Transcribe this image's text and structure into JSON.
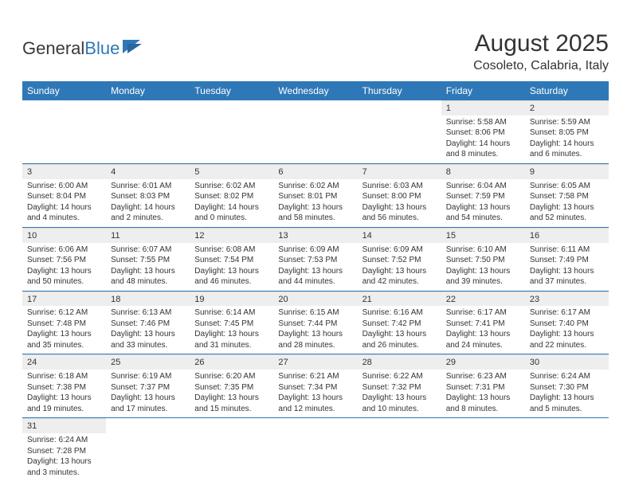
{
  "logo": {
    "text1": "General",
    "text2": "Blue"
  },
  "title": "August 2025",
  "location": "Cosoleto, Calabria, Italy",
  "colors": {
    "header_bg": "#2f78b7",
    "header_text": "#ffffff",
    "daynum_bg": "#eeeeee",
    "row_divider": "#2f78b7",
    "body_text": "#333333"
  },
  "day_headers": [
    "Sunday",
    "Monday",
    "Tuesday",
    "Wednesday",
    "Thursday",
    "Friday",
    "Saturday"
  ],
  "weeks": [
    [
      {
        "empty": true
      },
      {
        "empty": true
      },
      {
        "empty": true
      },
      {
        "empty": true
      },
      {
        "empty": true
      },
      {
        "num": "1",
        "sunrise": "Sunrise: 5:58 AM",
        "sunset": "Sunset: 8:06 PM",
        "day1": "Daylight: 14 hours",
        "day2": "and 8 minutes."
      },
      {
        "num": "2",
        "sunrise": "Sunrise: 5:59 AM",
        "sunset": "Sunset: 8:05 PM",
        "day1": "Daylight: 14 hours",
        "day2": "and 6 minutes."
      }
    ],
    [
      {
        "num": "3",
        "sunrise": "Sunrise: 6:00 AM",
        "sunset": "Sunset: 8:04 PM",
        "day1": "Daylight: 14 hours",
        "day2": "and 4 minutes."
      },
      {
        "num": "4",
        "sunrise": "Sunrise: 6:01 AM",
        "sunset": "Sunset: 8:03 PM",
        "day1": "Daylight: 14 hours",
        "day2": "and 2 minutes."
      },
      {
        "num": "5",
        "sunrise": "Sunrise: 6:02 AM",
        "sunset": "Sunset: 8:02 PM",
        "day1": "Daylight: 14 hours",
        "day2": "and 0 minutes."
      },
      {
        "num": "6",
        "sunrise": "Sunrise: 6:02 AM",
        "sunset": "Sunset: 8:01 PM",
        "day1": "Daylight: 13 hours",
        "day2": "and 58 minutes."
      },
      {
        "num": "7",
        "sunrise": "Sunrise: 6:03 AM",
        "sunset": "Sunset: 8:00 PM",
        "day1": "Daylight: 13 hours",
        "day2": "and 56 minutes."
      },
      {
        "num": "8",
        "sunrise": "Sunrise: 6:04 AM",
        "sunset": "Sunset: 7:59 PM",
        "day1": "Daylight: 13 hours",
        "day2": "and 54 minutes."
      },
      {
        "num": "9",
        "sunrise": "Sunrise: 6:05 AM",
        "sunset": "Sunset: 7:58 PM",
        "day1": "Daylight: 13 hours",
        "day2": "and 52 minutes."
      }
    ],
    [
      {
        "num": "10",
        "sunrise": "Sunrise: 6:06 AM",
        "sunset": "Sunset: 7:56 PM",
        "day1": "Daylight: 13 hours",
        "day2": "and 50 minutes."
      },
      {
        "num": "11",
        "sunrise": "Sunrise: 6:07 AM",
        "sunset": "Sunset: 7:55 PM",
        "day1": "Daylight: 13 hours",
        "day2": "and 48 minutes."
      },
      {
        "num": "12",
        "sunrise": "Sunrise: 6:08 AM",
        "sunset": "Sunset: 7:54 PM",
        "day1": "Daylight: 13 hours",
        "day2": "and 46 minutes."
      },
      {
        "num": "13",
        "sunrise": "Sunrise: 6:09 AM",
        "sunset": "Sunset: 7:53 PM",
        "day1": "Daylight: 13 hours",
        "day2": "and 44 minutes."
      },
      {
        "num": "14",
        "sunrise": "Sunrise: 6:09 AM",
        "sunset": "Sunset: 7:52 PM",
        "day1": "Daylight: 13 hours",
        "day2": "and 42 minutes."
      },
      {
        "num": "15",
        "sunrise": "Sunrise: 6:10 AM",
        "sunset": "Sunset: 7:50 PM",
        "day1": "Daylight: 13 hours",
        "day2": "and 39 minutes."
      },
      {
        "num": "16",
        "sunrise": "Sunrise: 6:11 AM",
        "sunset": "Sunset: 7:49 PM",
        "day1": "Daylight: 13 hours",
        "day2": "and 37 minutes."
      }
    ],
    [
      {
        "num": "17",
        "sunrise": "Sunrise: 6:12 AM",
        "sunset": "Sunset: 7:48 PM",
        "day1": "Daylight: 13 hours",
        "day2": "and 35 minutes."
      },
      {
        "num": "18",
        "sunrise": "Sunrise: 6:13 AM",
        "sunset": "Sunset: 7:46 PM",
        "day1": "Daylight: 13 hours",
        "day2": "and 33 minutes."
      },
      {
        "num": "19",
        "sunrise": "Sunrise: 6:14 AM",
        "sunset": "Sunset: 7:45 PM",
        "day1": "Daylight: 13 hours",
        "day2": "and 31 minutes."
      },
      {
        "num": "20",
        "sunrise": "Sunrise: 6:15 AM",
        "sunset": "Sunset: 7:44 PM",
        "day1": "Daylight: 13 hours",
        "day2": "and 28 minutes."
      },
      {
        "num": "21",
        "sunrise": "Sunrise: 6:16 AM",
        "sunset": "Sunset: 7:42 PM",
        "day1": "Daylight: 13 hours",
        "day2": "and 26 minutes."
      },
      {
        "num": "22",
        "sunrise": "Sunrise: 6:17 AM",
        "sunset": "Sunset: 7:41 PM",
        "day1": "Daylight: 13 hours",
        "day2": "and 24 minutes."
      },
      {
        "num": "23",
        "sunrise": "Sunrise: 6:17 AM",
        "sunset": "Sunset: 7:40 PM",
        "day1": "Daylight: 13 hours",
        "day2": "and 22 minutes."
      }
    ],
    [
      {
        "num": "24",
        "sunrise": "Sunrise: 6:18 AM",
        "sunset": "Sunset: 7:38 PM",
        "day1": "Daylight: 13 hours",
        "day2": "and 19 minutes."
      },
      {
        "num": "25",
        "sunrise": "Sunrise: 6:19 AM",
        "sunset": "Sunset: 7:37 PM",
        "day1": "Daylight: 13 hours",
        "day2": "and 17 minutes."
      },
      {
        "num": "26",
        "sunrise": "Sunrise: 6:20 AM",
        "sunset": "Sunset: 7:35 PM",
        "day1": "Daylight: 13 hours",
        "day2": "and 15 minutes."
      },
      {
        "num": "27",
        "sunrise": "Sunrise: 6:21 AM",
        "sunset": "Sunset: 7:34 PM",
        "day1": "Daylight: 13 hours",
        "day2": "and 12 minutes."
      },
      {
        "num": "28",
        "sunrise": "Sunrise: 6:22 AM",
        "sunset": "Sunset: 7:32 PM",
        "day1": "Daylight: 13 hours",
        "day2": "and 10 minutes."
      },
      {
        "num": "29",
        "sunrise": "Sunrise: 6:23 AM",
        "sunset": "Sunset: 7:31 PM",
        "day1": "Daylight: 13 hours",
        "day2": "and 8 minutes."
      },
      {
        "num": "30",
        "sunrise": "Sunrise: 6:24 AM",
        "sunset": "Sunset: 7:30 PM",
        "day1": "Daylight: 13 hours",
        "day2": "and 5 minutes."
      }
    ],
    [
      {
        "num": "31",
        "sunrise": "Sunrise: 6:24 AM",
        "sunset": "Sunset: 7:28 PM",
        "day1": "Daylight: 13 hours",
        "day2": "and 3 minutes."
      },
      {
        "empty": true
      },
      {
        "empty": true
      },
      {
        "empty": true
      },
      {
        "empty": true
      },
      {
        "empty": true
      },
      {
        "empty": true
      }
    ]
  ]
}
